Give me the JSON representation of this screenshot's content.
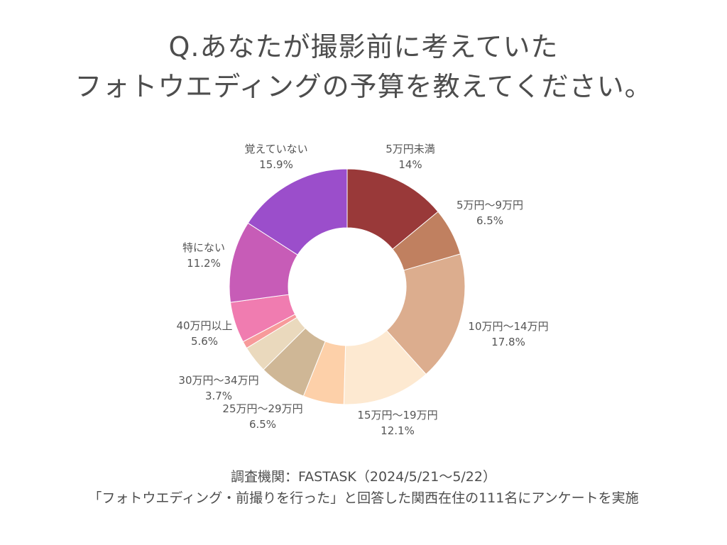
{
  "title": {
    "line1": "Q.あなたが撮影前に考えていた",
    "line2": "フォトウエディングの予算を教えてください。"
  },
  "chart_data": {
    "type": "pie",
    "donut": true,
    "slices": [
      {
        "label": "5万円未満",
        "display": "14%",
        "value": 14.0,
        "color": "#993939"
      },
      {
        "label": "5万円～9万円",
        "display": "6.5%",
        "value": 6.5,
        "color": "#c08060"
      },
      {
        "label": "10万円～14万円",
        "display": "17.8%",
        "value": 17.8,
        "color": "#dcad8e"
      },
      {
        "label": "15万円～19万円",
        "display": "12.1%",
        "value": 12.1,
        "color": "#fde9d1"
      },
      {
        "label": "",
        "display": "",
        "value": 5.6,
        "color": "#fdd0a9"
      },
      {
        "label": "25万円～29万円",
        "display": "6.5%",
        "value": 6.5,
        "color": "#cfb796"
      },
      {
        "label": "30万円～34万円",
        "display": "3.7%",
        "value": 3.7,
        "color": "#ead9bd"
      },
      {
        "label": "",
        "display": "",
        "value": 1.0,
        "color": "#f79a9a"
      },
      {
        "label": "40万円以上",
        "display": "5.6%",
        "value": 5.6,
        "color": "#f07cb0"
      },
      {
        "label": "特にない",
        "display": "11.2%",
        "value": 11.2,
        "color": "#c75cb7"
      },
      {
        "label": "覚えていない",
        "display": "15.9%",
        "value": 15.9,
        "color": "#9b4ecb"
      }
    ]
  },
  "footer": {
    "line1": "調査機関：FASTASK（2024/5/21〜5/22）",
    "line2": "「フォトウエディング・前撮りを行った」と回答した関西在住の111名にアンケートを実施"
  }
}
